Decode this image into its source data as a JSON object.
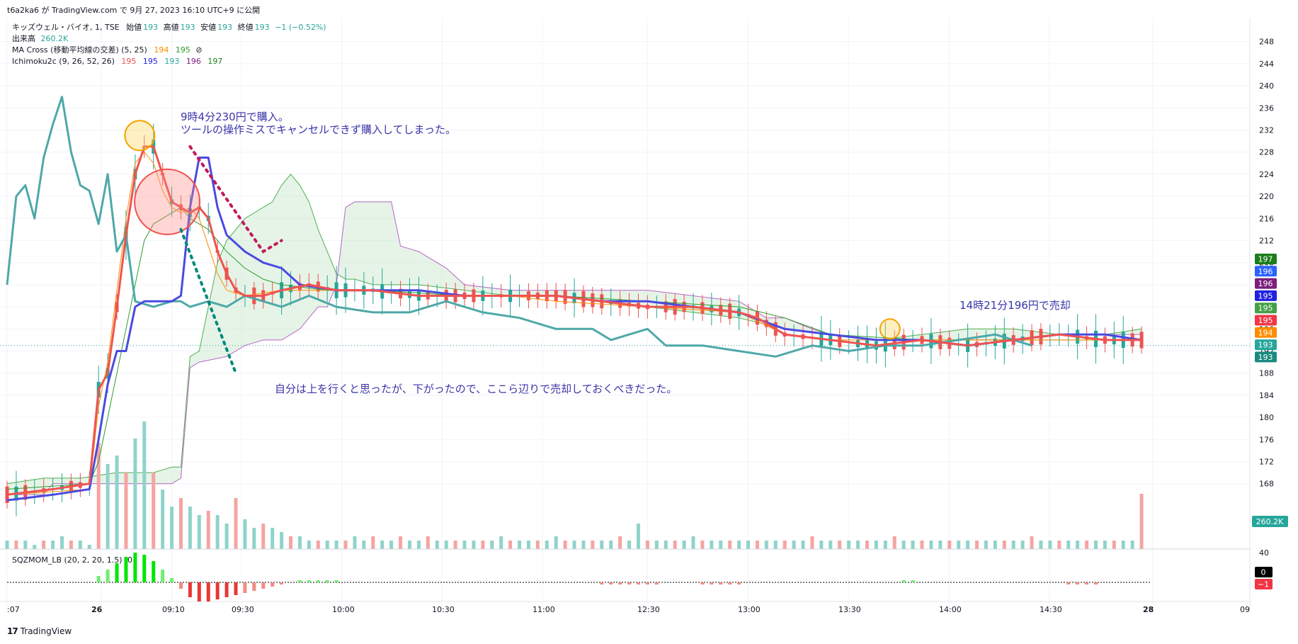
{
  "header": {
    "published": "t6a2ka6 が TradingView.com で 9月 27, 2023 16:10 UTC+9 に公開"
  },
  "legend": {
    "symbol": "キッズウェル・バイオ, 1, TSE",
    "open_label": "始値",
    "open": "193",
    "high_label": "高値",
    "high": "193",
    "low_label": "安値",
    "low": "193",
    "close_label": "終値",
    "close": "193",
    "change": "−1 (−0.52%)",
    "volume_label": "出来高",
    "volume": "260.2K",
    "ma_label": "MA Cross (移動平均線の交差) (5, 25)",
    "ma_v1": "194",
    "ma_v2": "195",
    "ma_sym": "⊘",
    "ichi_label": "Ichimoku2c (9, 26, 52, 26)",
    "ichi_v1": "195",
    "ichi_v2": "195",
    "ichi_v3": "193",
    "ichi_v4": "196",
    "ichi_v5": "197",
    "sqz_label": "SQZMOM_LB (20, 2, 20, 1.5)",
    "sqz_val": "0"
  },
  "annotations": {
    "buy": "9時4分230円で購入。\nツールの操作ミスでキャンセルできず購入してしまった。",
    "sell_note": "自分は上を行くと思ったが、下がったので、ここら辺りで売却しておくべきだった。",
    "sell": "14時21分196円で売却"
  },
  "footer": {
    "logo": "17",
    "brand": "TradingView"
  },
  "colors": {
    "candle_up": "#26a69a",
    "candle_down": "#ef5350",
    "tenkan": "#ef5350",
    "kijun": "#4a4ae0",
    "chikou": "#4ea8a8",
    "ma_fast": "#ff8c00",
    "ma_slow": "#2e9b2e",
    "cloud": "#c8e6c9",
    "annotation": "#3a35a8"
  },
  "chart_data": {
    "type": "candlestick",
    "x_ticks": [
      ":07",
      "26",
      "09:10",
      "09:30",
      "10:00",
      "10:30",
      "11:00",
      "12:30",
      "13:00",
      "13:30",
      "14:00",
      "14:30",
      "28",
      "09"
    ],
    "y_ticks": [
      168,
      172,
      176,
      180,
      184,
      188,
      192,
      196,
      200,
      204,
      208,
      212,
      216,
      220,
      224,
      228,
      232,
      236,
      240,
      244,
      248
    ],
    "ylim": [
      164.5,
      249.5
    ],
    "volume_axis_label": "40",
    "last_price": 193,
    "price_badges": [
      {
        "value": "197",
        "color": "#1b7e1b"
      },
      {
        "value": "196",
        "color": "#2962ff"
      },
      {
        "value": "196",
        "color": "#7b1f7b"
      },
      {
        "value": "195",
        "color": "#2020e0"
      },
      {
        "value": "195",
        "color": "#43a047"
      },
      {
        "value": "195",
        "color": "#f23645"
      },
      {
        "value": "194",
        "color": "#ff8c00"
      },
      {
        "value": "193",
        "color": "#26a69a"
      },
      {
        "value": "193",
        "color": "#1a8a80"
      }
    ],
    "volume_badge": "260.2K",
    "sqz_badges": [
      {
        "value": "0",
        "color": "#000000"
      },
      {
        "value": "−1",
        "color": "#f23645"
      }
    ],
    "tenkan": [
      [
        0,
        166
      ],
      [
        5,
        167
      ],
      [
        9,
        168
      ],
      [
        10,
        185
      ],
      [
        11,
        188
      ],
      [
        12,
        200
      ],
      [
        13,
        213
      ],
      [
        14,
        224
      ],
      [
        15,
        229
      ],
      [
        16,
        229
      ],
      [
        17,
        224
      ],
      [
        18,
        219
      ],
      [
        19,
        218
      ],
      [
        20,
        217
      ],
      [
        21,
        218
      ],
      [
        22,
        216
      ],
      [
        23,
        210
      ],
      [
        24,
        206
      ],
      [
        25,
        203
      ],
      [
        26,
        202
      ],
      [
        28,
        202
      ],
      [
        30,
        203
      ],
      [
        33,
        204
      ],
      [
        36,
        203
      ],
      [
        40,
        203
      ],
      [
        45,
        202
      ],
      [
        50,
        202
      ],
      [
        55,
        202
      ],
      [
        60,
        202
      ],
      [
        65,
        201
      ],
      [
        70,
        200
      ],
      [
        75,
        200
      ],
      [
        80,
        199
      ],
      [
        82,
        198
      ],
      [
        85,
        195
      ],
      [
        90,
        194
      ],
      [
        95,
        193
      ],
      [
        100,
        194
      ],
      [
        105,
        193
      ],
      [
        110,
        194
      ],
      [
        115,
        195
      ],
      [
        120,
        194
      ],
      [
        124,
        194
      ]
    ],
    "kijun": [
      [
        0,
        165
      ],
      [
        5,
        166
      ],
      [
        9,
        167
      ],
      [
        10,
        176
      ],
      [
        11,
        186
      ],
      [
        12,
        192
      ],
      [
        13,
        192
      ],
      [
        14,
        200
      ],
      [
        15,
        201
      ],
      [
        16,
        201
      ],
      [
        17,
        201
      ],
      [
        18,
        201
      ],
      [
        19,
        202
      ],
      [
        20,
        218
      ],
      [
        21,
        227
      ],
      [
        22,
        227
      ],
      [
        23,
        218
      ],
      [
        24,
        213
      ],
      [
        26,
        210
      ],
      [
        28,
        208
      ],
      [
        30,
        207
      ],
      [
        32,
        204
      ],
      [
        36,
        203
      ],
      [
        40,
        203
      ],
      [
        45,
        203
      ],
      [
        50,
        202
      ],
      [
        55,
        202
      ],
      [
        60,
        202
      ],
      [
        65,
        201
      ],
      [
        70,
        201
      ],
      [
        75,
        200
      ],
      [
        80,
        199
      ],
      [
        85,
        196
      ],
      [
        90,
        195
      ],
      [
        95,
        194
      ],
      [
        100,
        194
      ],
      [
        105,
        193
      ],
      [
        110,
        194
      ],
      [
        115,
        195
      ],
      [
        120,
        195
      ],
      [
        124,
        194
      ]
    ],
    "chikou": [
      [
        0,
        204
      ],
      [
        1,
        220
      ],
      [
        2,
        222
      ],
      [
        3,
        216
      ],
      [
        4,
        227
      ],
      [
        5,
        233
      ],
      [
        6,
        238
      ],
      [
        7,
        228
      ],
      [
        8,
        222
      ],
      [
        9,
        221
      ],
      [
        10,
        215
      ],
      [
        11,
        224
      ],
      [
        12,
        210
      ],
      [
        13,
        213
      ],
      [
        14,
        201
      ],
      [
        16,
        200
      ],
      [
        18,
        201
      ],
      [
        19,
        201
      ],
      [
        20,
        200
      ],
      [
        22,
        201
      ],
      [
        24,
        200
      ],
      [
        26,
        202
      ],
      [
        28,
        201
      ],
      [
        30,
        200
      ],
      [
        33,
        202
      ],
      [
        36,
        200
      ],
      [
        40,
        199
      ],
      [
        44,
        199
      ],
      [
        48,
        201
      ],
      [
        52,
        199
      ],
      [
        56,
        198
      ],
      [
        60,
        196
      ],
      [
        64,
        196
      ],
      [
        66,
        194
      ],
      [
        68,
        195
      ],
      [
        70,
        196
      ],
      [
        72,
        193
      ],
      [
        76,
        193
      ],
      [
        80,
        192
      ],
      [
        84,
        191
      ],
      [
        88,
        193
      ],
      [
        92,
        192
      ],
      [
        96,
        193
      ],
      [
        100,
        193
      ],
      [
        104,
        194
      ],
      [
        108,
        195
      ],
      [
        112,
        193
      ]
    ],
    "ma_fast": [
      [
        0,
        166
      ],
      [
        9,
        167
      ],
      [
        10,
        182
      ],
      [
        11,
        190
      ],
      [
        12,
        203
      ],
      [
        13,
        216
      ],
      [
        14,
        226
      ],
      [
        15,
        228
      ],
      [
        16,
        226
      ],
      [
        17,
        221
      ],
      [
        18,
        218
      ],
      [
        19,
        217
      ],
      [
        20,
        218
      ],
      [
        21,
        216
      ],
      [
        22,
        211
      ],
      [
        23,
        206
      ],
      [
        24,
        203
      ],
      [
        26,
        202
      ],
      [
        30,
        203
      ],
      [
        35,
        203
      ],
      [
        40,
        203
      ],
      [
        45,
        202
      ],
      [
        50,
        202
      ],
      [
        55,
        202
      ],
      [
        60,
        201
      ],
      [
        70,
        200
      ],
      [
        80,
        199
      ],
      [
        85,
        195
      ],
      [
        90,
        194
      ],
      [
        100,
        194
      ],
      [
        110,
        194
      ],
      [
        120,
        194
      ],
      [
        124,
        194
      ]
    ],
    "ma_slow": [
      [
        0,
        167
      ],
      [
        9,
        168
      ],
      [
        10,
        172
      ],
      [
        11,
        180
      ],
      [
        12,
        188
      ],
      [
        13,
        196
      ],
      [
        14,
        204
      ],
      [
        15,
        212
      ],
      [
        16,
        215
      ],
      [
        17,
        216
      ],
      [
        18,
        217
      ],
      [
        19,
        218
      ],
      [
        20,
        216
      ],
      [
        22,
        214
      ],
      [
        24,
        210
      ],
      [
        26,
        207
      ],
      [
        28,
        205
      ],
      [
        30,
        204
      ],
      [
        35,
        203
      ],
      [
        40,
        203
      ],
      [
        50,
        202
      ],
      [
        60,
        202
      ],
      [
        70,
        201
      ],
      [
        80,
        200
      ],
      [
        85,
        198
      ],
      [
        90,
        195
      ],
      [
        100,
        194
      ],
      [
        110,
        194
      ],
      [
        120,
        194
      ],
      [
        124,
        194
      ]
    ],
    "cloud_a": [
      [
        0,
        168
      ],
      [
        4,
        169
      ],
      [
        8,
        169
      ],
      [
        12,
        170
      ],
      [
        16,
        170
      ],
      [
        18,
        171
      ],
      [
        19,
        171
      ],
      [
        20,
        191
      ],
      [
        21,
        192
      ],
      [
        22,
        200
      ],
      [
        23,
        208
      ],
      [
        24,
        212
      ],
      [
        25,
        214
      ],
      [
        26,
        216
      ],
      [
        27,
        217
      ],
      [
        28,
        218
      ],
      [
        29,
        219
      ],
      [
        30,
        222
      ],
      [
        31,
        224
      ],
      [
        32,
        222
      ],
      [
        33,
        219
      ],
      [
        34,
        214
      ],
      [
        35,
        210
      ],
      [
        36,
        206
      ],
      [
        37,
        205
      ],
      [
        38,
        205
      ],
      [
        40,
        204
      ],
      [
        45,
        204
      ],
      [
        50,
        203
      ],
      [
        55,
        202
      ],
      [
        60,
        202
      ],
      [
        65,
        201
      ],
      [
        70,
        200
      ],
      [
        75,
        199
      ],
      [
        80,
        198
      ],
      [
        85,
        196
      ],
      [
        90,
        195
      ],
      [
        95,
        194
      ],
      [
        100,
        195
      ],
      [
        105,
        196
      ],
      [
        110,
        196
      ],
      [
        115,
        195
      ],
      [
        120,
        195
      ],
      [
        124,
        196
      ]
    ],
    "cloud_b": [
      [
        0,
        166
      ],
      [
        4,
        166
      ],
      [
        5,
        168
      ],
      [
        8,
        168
      ],
      [
        12,
        168
      ],
      [
        16,
        168
      ],
      [
        18,
        168
      ],
      [
        19,
        169
      ],
      [
        20,
        189
      ],
      [
        21,
        190
      ],
      [
        24,
        191
      ],
      [
        26,
        193
      ],
      [
        28,
        194
      ],
      [
        30,
        194
      ],
      [
        32,
        196
      ],
      [
        34,
        200
      ],
      [
        35,
        200
      ],
      [
        36,
        204
      ],
      [
        37,
        218
      ],
      [
        38,
        219
      ],
      [
        40,
        219
      ],
      [
        42,
        219
      ],
      [
        43,
        211
      ],
      [
        45,
        210
      ],
      [
        48,
        207
      ],
      [
        50,
        204
      ],
      [
        55,
        203
      ],
      [
        60,
        203
      ],
      [
        65,
        203
      ],
      [
        70,
        203
      ],
      [
        75,
        202
      ],
      [
        80,
        201
      ],
      [
        83,
        198
      ],
      [
        85,
        198
      ],
      [
        88,
        196
      ],
      [
        90,
        195
      ],
      [
        95,
        194
      ],
      [
        100,
        194
      ],
      [
        105,
        194
      ],
      [
        110,
        194
      ],
      [
        115,
        195
      ],
      [
        120,
        195
      ],
      [
        124,
        195
      ]
    ],
    "volumes": [
      2,
      2,
      2,
      1,
      2,
      2,
      3,
      2,
      2,
      1,
      25,
      20,
      22,
      18,
      26,
      30,
      18,
      14,
      10,
      12,
      10,
      8,
      9,
      8,
      6,
      12,
      7,
      5,
      6,
      5,
      4,
      3,
      3,
      2,
      2,
      2,
      2,
      2,
      3,
      2,
      3,
      2,
      2,
      3,
      2,
      2,
      3,
      2,
      2,
      2,
      2,
      2,
      2,
      2,
      3,
      2,
      2,
      2,
      2,
      2,
      3,
      2,
      2,
      2,
      2,
      2,
      2,
      3,
      2,
      6,
      2,
      2,
      2,
      2,
      2,
      3,
      2,
      2,
      2,
      2,
      2,
      2,
      2,
      2,
      2,
      2,
      2,
      2,
      3,
      2,
      2,
      2,
      2,
      2,
      2,
      2,
      2,
      3,
      2,
      2,
      2,
      2,
      2,
      2,
      2,
      2,
      2,
      2,
      2,
      2,
      2,
      2,
      3,
      2,
      2,
      2,
      2,
      2,
      2,
      2,
      2,
      2,
      2,
      2,
      13
    ],
    "squeeze": [
      0,
      0,
      0,
      0,
      0,
      0,
      0,
      0,
      0,
      0,
      3,
      6,
      9,
      12,
      14,
      13,
      10,
      6,
      2,
      -3,
      -7,
      -9,
      -9,
      -8,
      -7,
      -6,
      -5,
      -4,
      -3,
      -2,
      -1,
      0,
      1,
      1,
      1,
      1,
      1,
      0,
      0,
      0,
      0,
      0,
      0,
      0,
      0,
      0,
      0,
      0,
      0,
      0,
      0,
      0,
      0,
      0,
      0,
      0,
      0,
      0,
      0,
      0,
      0,
      0,
      0,
      0,
      0,
      -1,
      -1,
      -1,
      -1,
      -1,
      -1,
      -1,
      0,
      0,
      0,
      0,
      -1,
      -1,
      -1,
      -1,
      -1,
      0,
      0,
      0,
      0,
      0,
      0,
      0,
      0,
      0,
      0,
      0,
      0,
      0,
      0,
      0,
      0,
      0,
      1,
      1,
      0,
      0,
      0,
      0,
      0,
      0,
      0,
      0,
      0,
      0,
      0,
      0,
      0,
      0,
      0,
      0,
      -1,
      -1,
      -1,
      -1,
      0,
      0,
      0,
      0,
      0
    ]
  }
}
